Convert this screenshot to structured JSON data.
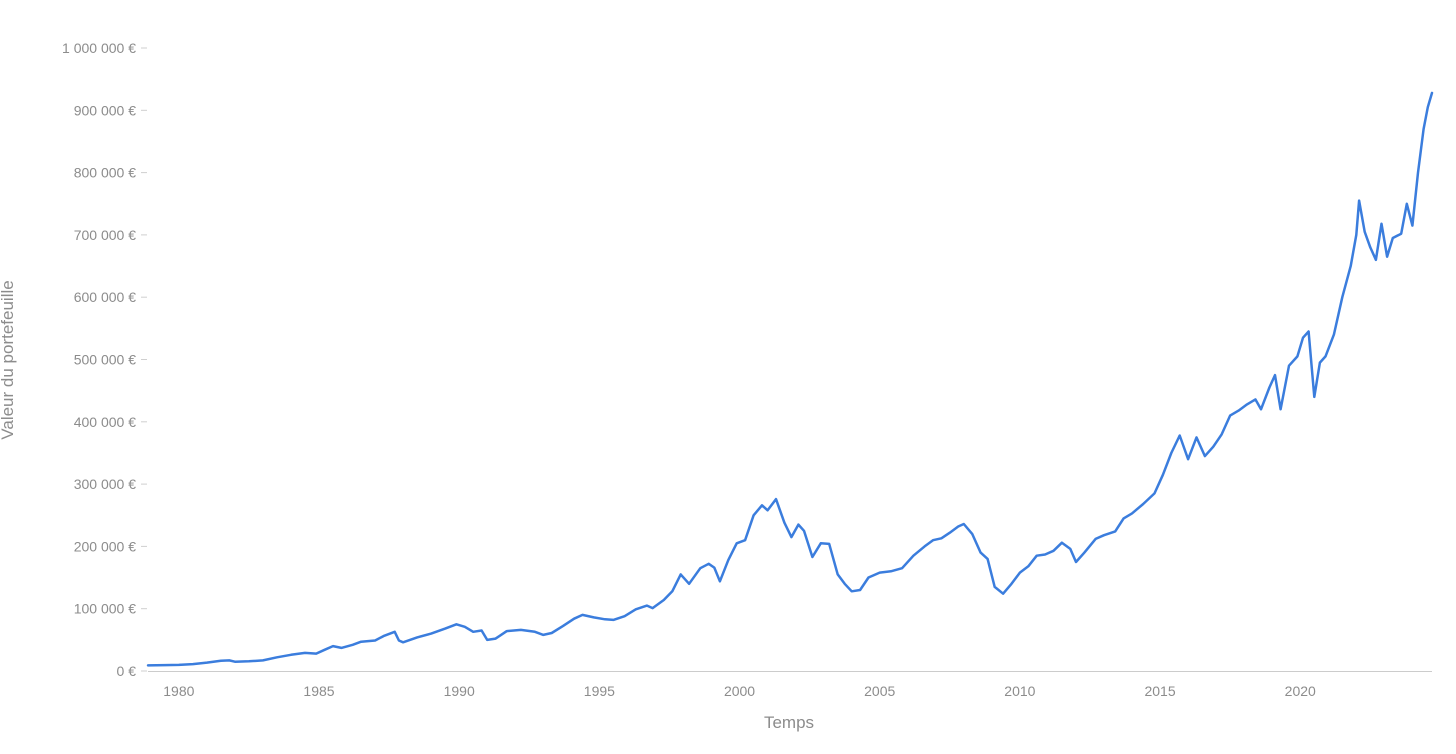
{
  "chart_data": {
    "type": "line",
    "title": "",
    "xlabel": "Temps",
    "ylabel": "Valeur du portefeuille",
    "xlim": [
      1978.9,
      2024.7
    ],
    "ylim": [
      0,
      1000000
    ],
    "grid": false,
    "x_ticks": [
      1980,
      1985,
      1990,
      1995,
      2000,
      2005,
      2010,
      2015,
      2020
    ],
    "x_tick_labels": [
      "1980",
      "1985",
      "1990",
      "1995",
      "2000",
      "2005",
      "2010",
      "2015",
      "2020"
    ],
    "y_ticks": [
      0,
      100000,
      200000,
      300000,
      400000,
      500000,
      600000,
      700000,
      800000,
      900000,
      1000000
    ],
    "y_tick_labels": [
      "0 €",
      "100 000 €",
      "200 000 €",
      "300 000 €",
      "400 000 €",
      "500 000 €",
      "600 000 €",
      "700 000 €",
      "800 000 €",
      "900 000 €",
      "1 000 000 €"
    ],
    "colors": {
      "line": "#3b7ddd",
      "tick_text": "#8c8c8c",
      "axis": "#cccccc"
    },
    "series": [
      {
        "points": [
          [
            1978.9,
            9000
          ],
          [
            1979.5,
            9500
          ],
          [
            1980.0,
            9800
          ],
          [
            1980.5,
            11000
          ],
          [
            1981.0,
            13500
          ],
          [
            1981.5,
            16500
          ],
          [
            1981.8,
            17000
          ],
          [
            1982.0,
            15000
          ],
          [
            1982.5,
            15500
          ],
          [
            1983.0,
            17000
          ],
          [
            1983.5,
            22000
          ],
          [
            1984.0,
            26000
          ],
          [
            1984.5,
            29000
          ],
          [
            1984.9,
            28000
          ],
          [
            1985.2,
            34000
          ],
          [
            1985.5,
            40000
          ],
          [
            1985.8,
            37000
          ],
          [
            1986.2,
            42000
          ],
          [
            1986.5,
            47000
          ],
          [
            1987.0,
            49000
          ],
          [
            1987.3,
            56000
          ],
          [
            1987.7,
            63000
          ],
          [
            1987.85,
            49000
          ],
          [
            1988.0,
            46000
          ],
          [
            1988.5,
            54000
          ],
          [
            1989.0,
            60000
          ],
          [
            1989.5,
            68000
          ],
          [
            1989.9,
            75000
          ],
          [
            1990.2,
            71000
          ],
          [
            1990.5,
            63000
          ],
          [
            1990.8,
            65000
          ],
          [
            1991.0,
            50000
          ],
          [
            1991.3,
            52000
          ],
          [
            1991.7,
            64000
          ],
          [
            1992.2,
            66000
          ],
          [
            1992.7,
            63000
          ],
          [
            1993.0,
            58000
          ],
          [
            1993.3,
            61000
          ],
          [
            1993.7,
            72000
          ],
          [
            1994.1,
            84000
          ],
          [
            1994.4,
            90000
          ],
          [
            1994.8,
            86000
          ],
          [
            1995.2,
            83000
          ],
          [
            1995.5,
            82000
          ],
          [
            1995.9,
            88000
          ],
          [
            1996.3,
            99000
          ],
          [
            1996.7,
            105000
          ],
          [
            1996.9,
            101000
          ],
          [
            1997.3,
            114000
          ],
          [
            1997.6,
            128000
          ],
          [
            1997.9,
            155000
          ],
          [
            1998.2,
            140000
          ],
          [
            1998.6,
            165000
          ],
          [
            1998.9,
            172000
          ],
          [
            1999.1,
            166000
          ],
          [
            1999.3,
            144000
          ],
          [
            1999.6,
            178000
          ],
          [
            1999.9,
            205000
          ],
          [
            2000.2,
            210000
          ],
          [
            2000.5,
            250000
          ],
          [
            2000.8,
            266000
          ],
          [
            2001.0,
            258000
          ],
          [
            2001.3,
            276000
          ],
          [
            2001.6,
            238000
          ],
          [
            2001.85,
            215000
          ],
          [
            2002.1,
            235000
          ],
          [
            2002.3,
            225000
          ],
          [
            2002.6,
            183000
          ],
          [
            2002.9,
            205000
          ],
          [
            2003.2,
            204000
          ],
          [
            2003.5,
            155000
          ],
          [
            2003.75,
            140000
          ],
          [
            2004.0,
            128000
          ],
          [
            2004.3,
            130000
          ],
          [
            2004.6,
            150000
          ],
          [
            2005.0,
            158000
          ],
          [
            2005.4,
            160000
          ],
          [
            2005.8,
            165000
          ],
          [
            2006.2,
            185000
          ],
          [
            2006.6,
            200000
          ],
          [
            2006.9,
            210000
          ],
          [
            2007.2,
            213000
          ],
          [
            2007.5,
            222000
          ],
          [
            2007.8,
            232000
          ],
          [
            2008.0,
            236000
          ],
          [
            2008.3,
            220000
          ],
          [
            2008.6,
            190000
          ],
          [
            2008.85,
            180000
          ],
          [
            2009.1,
            135000
          ],
          [
            2009.4,
            124000
          ],
          [
            2009.7,
            140000
          ],
          [
            2010.0,
            158000
          ],
          [
            2010.3,
            168000
          ],
          [
            2010.6,
            185000
          ],
          [
            2010.9,
            187000
          ],
          [
            2011.2,
            193000
          ],
          [
            2011.5,
            206000
          ],
          [
            2011.8,
            196000
          ],
          [
            2012.0,
            175000
          ],
          [
            2012.3,
            190000
          ],
          [
            2012.7,
            212000
          ],
          [
            2013.0,
            218000
          ],
          [
            2013.4,
            224000
          ],
          [
            2013.7,
            245000
          ],
          [
            2014.0,
            253000
          ],
          [
            2014.4,
            268000
          ],
          [
            2014.8,
            285000
          ],
          [
            2015.1,
            315000
          ],
          [
            2015.4,
            350000
          ],
          [
            2015.7,
            378000
          ],
          [
            2016.0,
            340000
          ],
          [
            2016.3,
            375000
          ],
          [
            2016.6,
            345000
          ],
          [
            2016.9,
            360000
          ],
          [
            2017.2,
            380000
          ],
          [
            2017.5,
            410000
          ],
          [
            2017.8,
            418000
          ],
          [
            2018.1,
            428000
          ],
          [
            2018.4,
            436000
          ],
          [
            2018.6,
            420000
          ],
          [
            2018.9,
            455000
          ],
          [
            2019.1,
            475000
          ],
          [
            2019.3,
            420000
          ],
          [
            2019.6,
            490000
          ],
          [
            2019.9,
            505000
          ],
          [
            2020.1,
            535000
          ],
          [
            2020.3,
            545000
          ],
          [
            2020.5,
            440000
          ],
          [
            2020.7,
            495000
          ],
          [
            2020.9,
            505000
          ],
          [
            2021.2,
            540000
          ],
          [
            2021.5,
            600000
          ],
          [
            2021.8,
            650000
          ],
          [
            2022.0,
            700000
          ],
          [
            2022.1,
            755000
          ],
          [
            2022.3,
            705000
          ],
          [
            2022.5,
            680000
          ],
          [
            2022.7,
            660000
          ],
          [
            2022.9,
            718000
          ],
          [
            2023.1,
            665000
          ],
          [
            2023.3,
            695000
          ],
          [
            2023.6,
            702000
          ],
          [
            2023.8,
            750000
          ],
          [
            2024.0,
            715000
          ],
          [
            2024.2,
            800000
          ],
          [
            2024.4,
            870000
          ],
          [
            2024.55,
            905000
          ],
          [
            2024.7,
            928000
          ]
        ]
      }
    ]
  }
}
